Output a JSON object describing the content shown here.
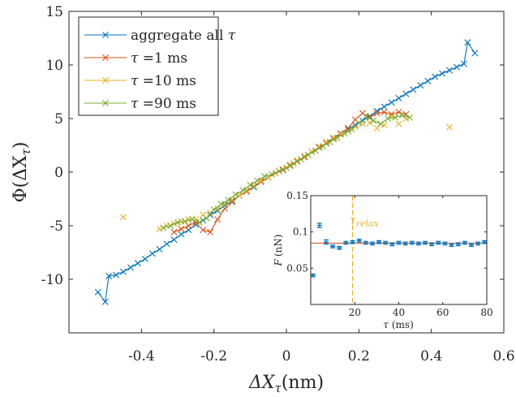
{
  "chart_data": {
    "type": "scatter",
    "main": {
      "xlabel": "ΔX",
      "xlabel_sub": "τ",
      "xlabel_unit": "(nm)",
      "ylabel": "Φ(ΔX",
      "ylabel_sub": "τ",
      "ylabel_close": ")",
      "xlim": [
        -0.6,
        0.6
      ],
      "ylim": [
        -15,
        15
      ],
      "xticks": [
        -0.4,
        -0.2,
        0,
        0.2,
        0.4,
        0.6
      ],
      "xtick_labels": [
        "-0.4",
        "-0.2",
        "0",
        "0.2",
        "0.4",
        "0.6"
      ],
      "yticks": [
        -10,
        -5,
        0,
        5,
        10,
        15
      ],
      "ytick_labels": [
        "-10",
        "-5",
        "0",
        "5",
        "10",
        "15"
      ],
      "legend_position": "top-left",
      "series": [
        {
          "name": "aggregate all τ",
          "color": "#0072BD",
          "marker": "x",
          "line": true,
          "x": [
            -0.52,
            -0.5,
            -0.49,
            -0.47,
            -0.45,
            -0.43,
            -0.41,
            -0.39,
            -0.37,
            -0.35,
            -0.33,
            -0.31,
            -0.29,
            -0.27,
            -0.25,
            -0.23,
            -0.21,
            -0.19,
            -0.17,
            -0.15,
            -0.13,
            -0.11,
            -0.09,
            -0.07,
            -0.05,
            -0.03,
            -0.01,
            0.01,
            0.03,
            0.05,
            0.07,
            0.09,
            0.11,
            0.13,
            0.15,
            0.17,
            0.19,
            0.21,
            0.23,
            0.25,
            0.27,
            0.29,
            0.31,
            0.33,
            0.35,
            0.37,
            0.39,
            0.41,
            0.43,
            0.45,
            0.47,
            0.49,
            0.5,
            0.52
          ],
          "y": [
            -11.2,
            -12.1,
            -9.7,
            -9.6,
            -9.3,
            -8.9,
            -8.5,
            -8.1,
            -7.6,
            -7.2,
            -6.7,
            -6.3,
            -5.8,
            -5.4,
            -4.9,
            -4.5,
            -4.0,
            -3.6,
            -3.1,
            -2.7,
            -2.2,
            -1.8,
            -1.4,
            -0.9,
            -0.5,
            -0.1,
            0.2,
            0.6,
            1.0,
            1.4,
            1.9,
            2.3,
            2.7,
            3.2,
            3.6,
            4.0,
            4.4,
            4.8,
            5.2,
            5.7,
            6.1,
            6.5,
            6.9,
            7.3,
            7.7,
            8.1,
            8.5,
            8.9,
            9.2,
            9.5,
            9.8,
            10.1,
            12.1,
            11.1
          ]
        },
        {
          "name": "τ =1 ms",
          "color": "#D95319",
          "marker": "x",
          "line": true,
          "x": [
            -0.31,
            -0.29,
            -0.27,
            -0.25,
            -0.23,
            -0.21,
            -0.19,
            -0.17,
            -0.15,
            -0.13,
            -0.11,
            -0.09,
            -0.07,
            -0.05,
            -0.03,
            -0.01,
            0.01,
            0.03,
            0.05,
            0.07,
            0.09,
            0.11,
            0.13,
            0.15,
            0.17,
            0.19,
            0.21,
            0.23,
            0.25,
            0.27,
            0.29,
            0.31,
            0.33
          ],
          "y": [
            -5.6,
            -5.3,
            -5.0,
            -4.7,
            -5.4,
            -5.6,
            -4.4,
            -3.4,
            -2.8,
            -2.2,
            -1.8,
            -1.3,
            -0.9,
            -0.5,
            -0.1,
            0.2,
            0.6,
            1.0,
            1.4,
            1.9,
            2.3,
            2.7,
            3.1,
            3.6,
            4.1,
            4.9,
            5.5,
            5.1,
            5.5,
            5.6,
            5.4,
            5.6,
            5.4
          ]
        },
        {
          "name": "τ =10 ms",
          "color": "#EDB120",
          "marker": "x",
          "line": false,
          "x": [
            -0.45,
            -0.35,
            -0.33,
            -0.31,
            -0.29,
            -0.27,
            -0.25,
            -0.23,
            -0.21,
            -0.19,
            -0.17,
            -0.15,
            -0.13,
            -0.11,
            -0.09,
            -0.07,
            -0.05,
            -0.03,
            -0.01,
            0.01,
            0.03,
            0.05,
            0.07,
            0.09,
            0.11,
            0.13,
            0.15,
            0.17,
            0.19,
            0.21,
            0.23,
            0.25,
            0.27,
            0.29,
            0.31,
            0.33,
            0.45
          ],
          "y": [
            -4.2,
            -5.3,
            -5.0,
            -4.8,
            -4.6,
            -4.4,
            -4.4,
            -4.0,
            -3.8,
            -3.4,
            -3.0,
            -2.6,
            -2.2,
            -1.7,
            -1.3,
            -0.8,
            -0.5,
            -0.1,
            0.3,
            0.7,
            1.1,
            1.5,
            1.9,
            2.4,
            2.8,
            3.2,
            3.5,
            3.8,
            4.2,
            4.5,
            4.6,
            4.1,
            4.4,
            5.2,
            4.5,
            5.0,
            4.2
          ]
        },
        {
          "name": "τ =90 ms",
          "color": "#77AC30",
          "marker": "x",
          "line": true,
          "x": [
            -0.34,
            -0.32,
            -0.3,
            -0.28,
            -0.26,
            -0.24,
            -0.22,
            -0.2,
            -0.18,
            -0.16,
            -0.14,
            -0.12,
            -0.1,
            -0.08,
            -0.06,
            -0.04,
            -0.02,
            0.0,
            0.02,
            0.04,
            0.06,
            0.08,
            0.1,
            0.12,
            0.14,
            0.16,
            0.18,
            0.2,
            0.22,
            0.24,
            0.26,
            0.28,
            0.3,
            0.32,
            0.34
          ],
          "y": [
            -5.2,
            -5.0,
            -4.7,
            -4.6,
            -4.4,
            -4.7,
            -4.3,
            -3.5,
            -3.0,
            -2.6,
            -2.1,
            -1.7,
            -1.2,
            -0.8,
            -0.4,
            -0.2,
            0.1,
            0.4,
            0.8,
            1.2,
            1.6,
            2.0,
            2.4,
            2.8,
            3.2,
            3.6,
            4.0,
            4.6,
            5.2,
            4.8,
            4.5,
            5.0,
            5.1,
            5.3,
            5.1
          ]
        }
      ]
    },
    "inset": {
      "type": "errorbar",
      "xlabel": "τ",
      "xlabel_unit": "(ms)",
      "ylabel": "F",
      "ylabel_unit": "(nN)",
      "xlim": [
        0,
        80
      ],
      "ylim": [
        0,
        0.15
      ],
      "xticks": [
        20,
        40,
        60,
        80
      ],
      "xtick_labels": [
        "20",
        "40",
        "60",
        "80"
      ],
      "yticks": [
        0.05,
        0.1,
        0.15
      ],
      "ytick_labels": [
        "0.05",
        "0.1",
        "0.15"
      ],
      "series_color": "#0072BD",
      "fit_color": "#D95319",
      "x": [
        1,
        4,
        7,
        10,
        13,
        16,
        19,
        22,
        25,
        28,
        31,
        34,
        37,
        40,
        43,
        46,
        49,
        52,
        55,
        58,
        61,
        64,
        67,
        70,
        73,
        76,
        79
      ],
      "y": [
        0.04,
        0.109,
        0.086,
        0.08,
        0.078,
        0.085,
        0.086,
        0.088,
        0.085,
        0.084,
        0.086,
        0.085,
        0.083,
        0.085,
        0.084,
        0.085,
        0.084,
        0.085,
        0.083,
        0.085,
        0.084,
        0.082,
        0.083,
        0.085,
        0.082,
        0.084,
        0.086
      ],
      "err": [
        0.002,
        0.003,
        0.003,
        0.002,
        0.002,
        0.002,
        0.002,
        0.002,
        0.002,
        0.002,
        0.002,
        0.002,
        0.002,
        0.002,
        0.002,
        0.002,
        0.002,
        0.002,
        0.002,
        0.002,
        0.002,
        0.002,
        0.002,
        0.002,
        0.002,
        0.002,
        0.002
      ],
      "fit_value": 0.0845,
      "vline": {
        "x": 19,
        "label": "τ",
        "label_sub": "relax",
        "color": "#EDB120"
      }
    }
  }
}
